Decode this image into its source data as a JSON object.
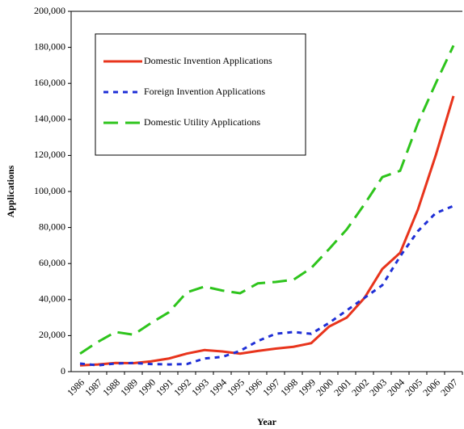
{
  "chart_data": {
    "type": "line",
    "x_label": "Year",
    "y_label": "Applications",
    "categories": [
      "1986",
      "1987",
      "1988",
      "1989",
      "1990",
      "1991",
      "1992",
      "1993",
      "1994",
      "1995",
      "1996",
      "1997",
      "1998",
      "1999",
      "2000",
      "2001",
      "2002",
      "2003",
      "2004",
      "2005",
      "2006",
      "2007"
    ],
    "series": [
      {
        "name": "Domestic Invention Applications",
        "color": "#e8341c",
        "dash": "none",
        "values": [
          3500,
          4000,
          4800,
          4700,
          5700,
          7300,
          10000,
          12000,
          11200,
          10000,
          11500,
          12800,
          13800,
          15800,
          25000,
          30000,
          41000,
          57000,
          66000,
          90000,
          120000,
          153000
        ]
      },
      {
        "name": "Foreign Invention Applications",
        "color": "#1f2fd6",
        "dash": "6 6",
        "values": [
          4500,
          3500,
          4500,
          4800,
          4200,
          4000,
          4200,
          7300,
          8200,
          11500,
          17000,
          21000,
          22000,
          21000,
          27000,
          34000,
          41000,
          48000,
          64000,
          78000,
          88000,
          92000
        ]
      },
      {
        "name": "Domestic Utility Applications",
        "color": "#2ec41c",
        "dash": "18 9",
        "values": [
          10000,
          16500,
          22000,
          20500,
          27000,
          33000,
          44000,
          47200,
          45000,
          43500,
          49000,
          49800,
          51000,
          57500,
          68000,
          79000,
          93000,
          108000,
          111500,
          138000,
          160000,
          181000
        ]
      }
    ],
    "ylim": [
      0,
      200000
    ],
    "yticks": [
      0,
      {
        "value": 20000,
        "label": "20,000"
      },
      {
        "value": 40000,
        "label": "40,000"
      },
      {
        "value": 60000,
        "label": "60,000"
      },
      {
        "value": 80000,
        "label": "80,000"
      },
      {
        "value": 100000,
        "label": "100,000"
      },
      {
        "value": 120000,
        "label": "120,000"
      },
      {
        "value": 140000,
        "label": "140,000"
      },
      {
        "value": 160000,
        "label": "160,000"
      },
      {
        "value": 180000,
        "label": "180,000"
      },
      {
        "value": 200000,
        "label": "200,000"
      }
    ],
    "legend": "top-left"
  }
}
